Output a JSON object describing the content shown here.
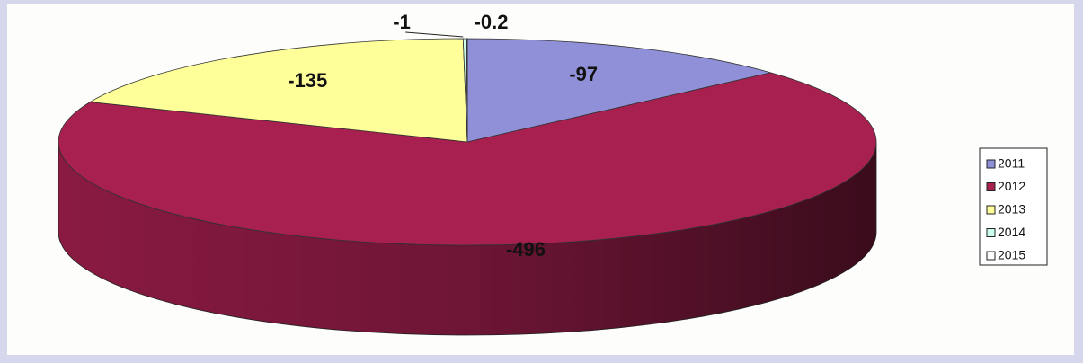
{
  "chart_data": {
    "type": "pie",
    "categories": [
      "2011",
      "2012",
      "2013",
      "2014",
      "2015"
    ],
    "values": [
      -97,
      -496,
      -135,
      -1,
      -0.2
    ],
    "colors": [
      "#9090d8",
      "#a8204f",
      "#ffff99",
      "#ccffee",
      "#ffffff"
    ],
    "legend": "right"
  }
}
